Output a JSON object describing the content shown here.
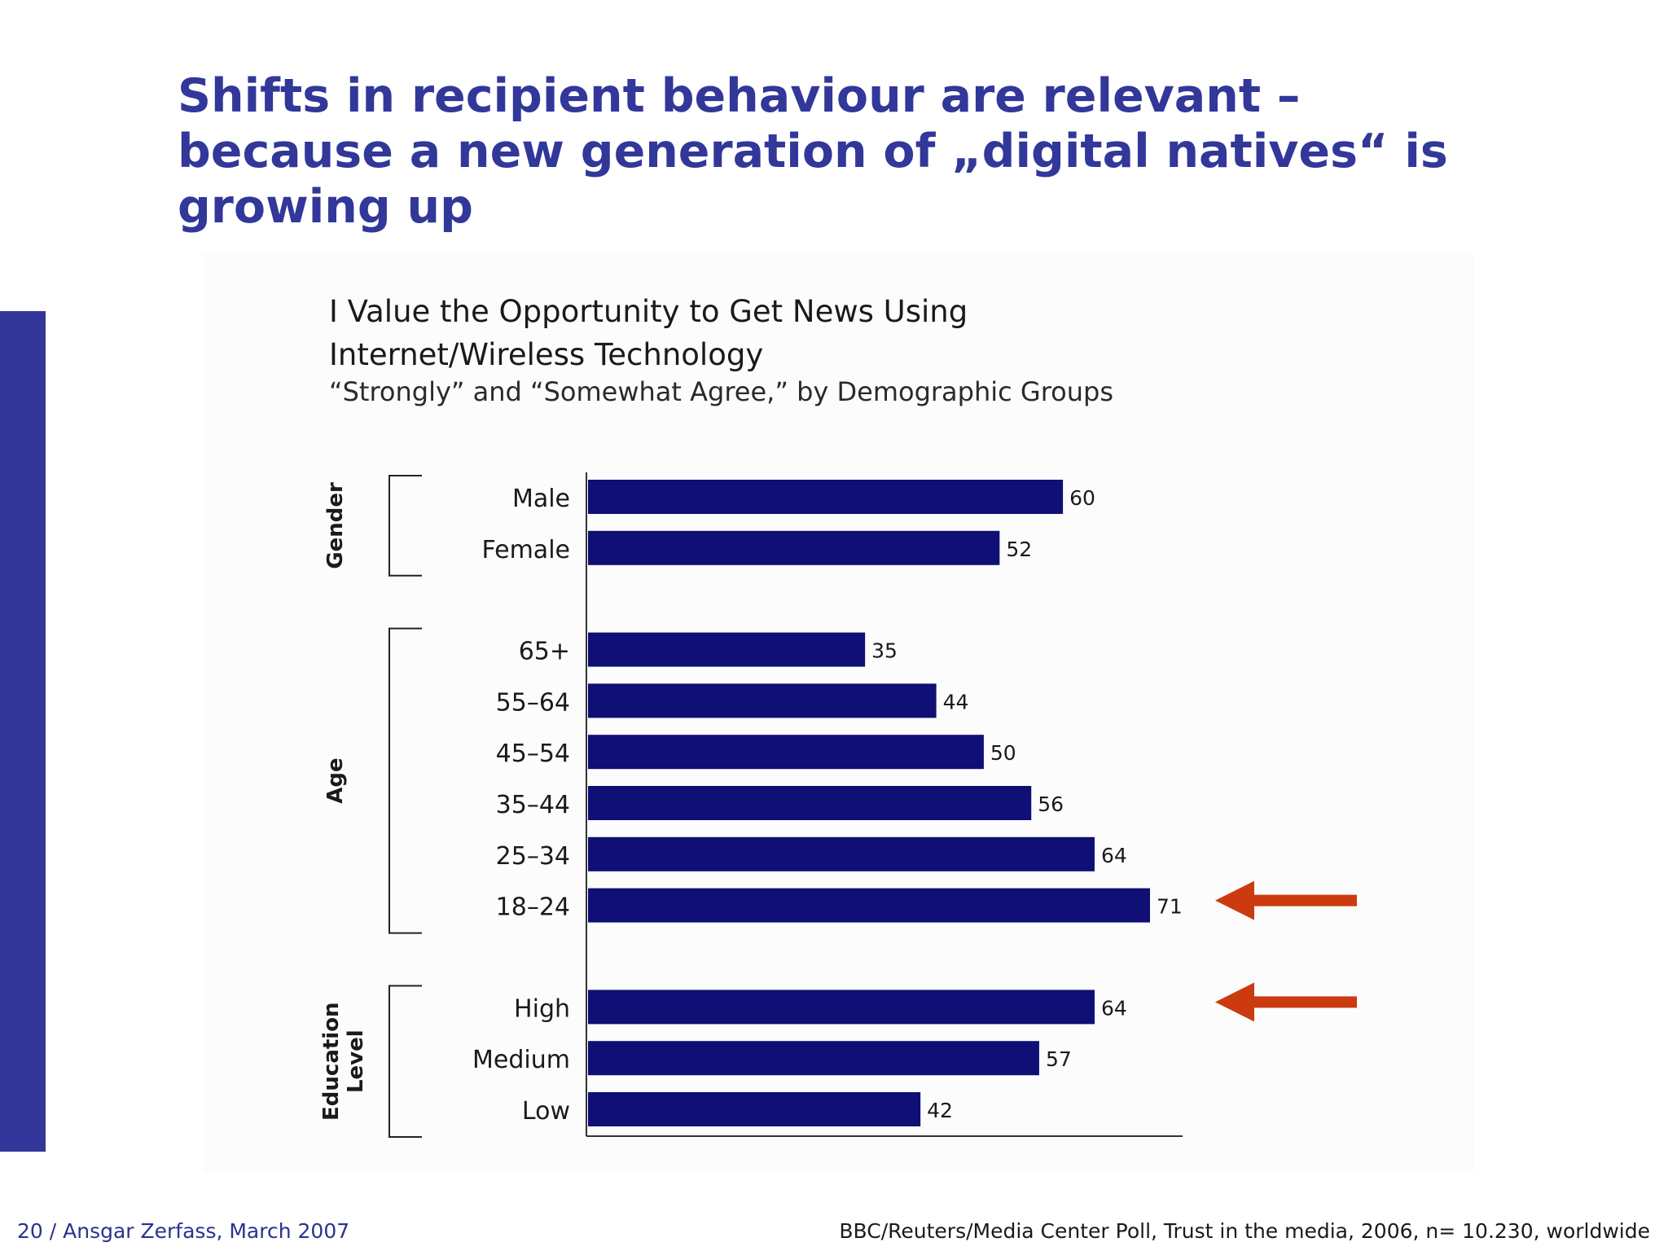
{
  "slide": {
    "title_lines": [
      "Shifts in recipient behaviour are relevant –",
      "because a new generation of „digital natives“ is",
      "growing up"
    ],
    "footer_left": "20 / Ansgar Zerfass, March 2007",
    "footer_right": "BBC/Reuters/Media Center Poll, Trust in the media, 2006, n= 10.230, worldwide"
  },
  "colors": {
    "bar": "#0f0f75",
    "accent_bar": "#323699",
    "title": "#32379a",
    "arrow": "#cc3a10"
  },
  "chart_data": {
    "type": "bar",
    "orientation": "horizontal",
    "title_lines": [
      "I Value the Opportunity to Get News Using",
      "Internet/Wireless Technology"
    ],
    "subtitle": "“Strongly” and “Somewhat Agree,” by Demographic Groups",
    "xlabel": "",
    "ylabel": "",
    "xlim": [
      0,
      71
    ],
    "grid": false,
    "data_labels": true,
    "groups": [
      {
        "label": "Gender",
        "categories": [
          "Male",
          "Female"
        ],
        "values": [
          60,
          52
        ]
      },
      {
        "label": "Age",
        "categories": [
          "65+",
          "55–64",
          "45–54",
          "35–44",
          "25–34",
          "18–24"
        ],
        "values": [
          35,
          44,
          50,
          56,
          64,
          71
        ]
      },
      {
        "label": "Education Level",
        "categories": [
          "High",
          "Medium",
          "Low"
        ],
        "values": [
          64,
          57,
          42
        ]
      }
    ],
    "highlighted": [
      "18–24",
      "High"
    ]
  }
}
